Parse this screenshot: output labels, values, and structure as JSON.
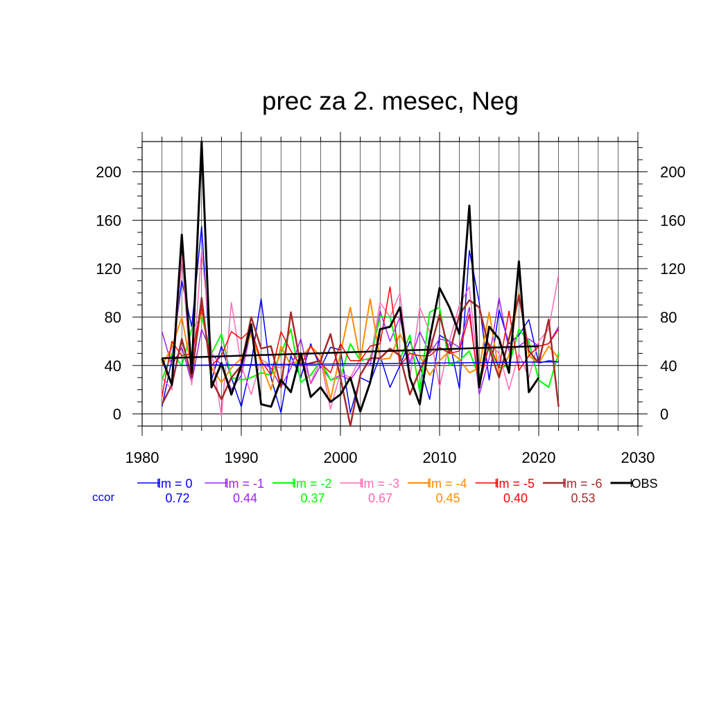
{
  "chart_data": {
    "type": "line",
    "title": "prec za 2. mesec, Neg",
    "xlabel": "",
    "ylabel": "",
    "xlim": [
      1980,
      2030
    ],
    "ylim": [
      -10,
      225
    ],
    "x_ticks": [
      1980,
      1990,
      2000,
      2010,
      2020,
      2030
    ],
    "x_tick_labels": [
      "1980",
      "1990",
      "2000",
      "2010",
      "2020",
      "2030"
    ],
    "y_ticks": [
      0,
      40,
      80,
      120,
      160,
      200
    ],
    "y_tick_labels": [
      "0",
      "40",
      "80",
      "120",
      "160",
      "200"
    ],
    "grid": true,
    "legend_position": "bottom",
    "ccor_label": "ccor",
    "years": [
      1982,
      1983,
      1984,
      1985,
      1986,
      1987,
      1988,
      1989,
      1990,
      1991,
      1992,
      1993,
      1994,
      1995,
      1996,
      1997,
      1998,
      1999,
      2000,
      2001,
      2002,
      2003,
      2004,
      2005,
      2006,
      2007,
      2008,
      2009,
      2010,
      2011,
      2012,
      2013,
      2014,
      2015,
      2016,
      2017,
      2018,
      2019,
      2020,
      2021,
      2022
    ],
    "series": [
      {
        "name": "lm = 0",
        "ccor": "0.72",
        "color": "#0000ff",
        "width": 1.5,
        "values": [
          6,
          45,
          110,
          72,
          155,
          28,
          56,
          30,
          6,
          42,
          95,
          30,
          1,
          48,
          30,
          58,
          38,
          55,
          53,
          1,
          30,
          26,
          48,
          22,
          40,
          60,
          40,
          12,
          65,
          60,
          21,
          135,
          92,
          28,
          86,
          58,
          65,
          78,
          42,
          44,
          43
        ]
      },
      {
        "name": "lm = -1",
        "ccor": "0.44",
        "color": "#a020f0",
        "width": 1.5,
        "values": [
          68,
          40,
          55,
          26,
          70,
          50,
          40,
          20,
          32,
          70,
          42,
          38,
          22,
          38,
          62,
          25,
          40,
          28,
          32,
          28,
          40,
          40,
          85,
          60,
          80,
          42,
          68,
          50,
          62,
          60,
          55,
          88,
          16,
          46,
          96,
          52,
          56,
          62,
          56,
          58,
          72
        ]
      },
      {
        "name": "lm = -2",
        "ccor": "0.37",
        "color": "#00ff00",
        "width": 2,
        "values": [
          28,
          50,
          40,
          70,
          80,
          50,
          66,
          30,
          28,
          30,
          34,
          32,
          50,
          70,
          26,
          32,
          44,
          28,
          30,
          58,
          44,
          46,
          80,
          80,
          45,
          65,
          18,
          84,
          88,
          40,
          44,
          52,
          30,
          55,
          38,
          40,
          70,
          60,
          28,
          22,
          50
        ]
      },
      {
        "name": "lm = -3",
        "ccor": "0.67",
        "color": "#ff69b4",
        "width": 1.5,
        "values": [
          30,
          20,
          130,
          24,
          135,
          52,
          -2,
          92,
          40,
          16,
          45,
          40,
          38,
          42,
          50,
          26,
          44,
          4,
          34,
          30,
          46,
          44,
          92,
          80,
          100,
          30,
          88,
          68,
          22,
          60,
          90,
          105,
          24,
          58,
          50,
          20,
          50,
          30,
          60,
          70,
          115
        ]
      },
      {
        "name": "lm = -4",
        "ccor": "0.45",
        "color": "#ff8c00",
        "width": 2,
        "values": [
          40,
          55,
          80,
          36,
          88,
          38,
          26,
          38,
          46,
          66,
          42,
          20,
          56,
          40,
          46,
          56,
          48,
          12,
          50,
          88,
          44,
          95,
          45,
          46,
          66,
          50,
          48,
          32,
          44,
          52,
          45,
          34,
          38,
          84,
          34,
          48,
          100,
          48,
          42,
          56,
          46
        ]
      },
      {
        "name": "lm = -5",
        "ccor": "0.40",
        "color": "#ff0000",
        "width": 1.5,
        "values": [
          14,
          60,
          48,
          50,
          88,
          40,
          48,
          68,
          62,
          70,
          44,
          32,
          68,
          52,
          40,
          56,
          42,
          34,
          58,
          44,
          44,
          56,
          58,
          105,
          40,
          50,
          48,
          48,
          55,
          50,
          52,
          82,
          22,
          58,
          38,
          85,
          36,
          48,
          56,
          58,
          70
        ]
      },
      {
        "name": "lm = -6",
        "ccor": "0.53",
        "color": "#a52a2a",
        "width": 2.5,
        "values": [
          8,
          24,
          62,
          30,
          96,
          28,
          12,
          30,
          40,
          80,
          54,
          56,
          22,
          84,
          40,
          42,
          44,
          66,
          30,
          -10,
          32,
          46,
          46,
          54,
          48,
          16,
          36,
          52,
          82,
          50,
          82,
          94,
          88,
          54,
          30,
          62,
          98,
          52,
          42,
          78,
          6
        ]
      },
      {
        "name": "OBS",
        "ccor": "",
        "color": "#000000",
        "width": 3,
        "values": [
          46,
          24,
          148,
          34,
          225,
          22,
          42,
          16,
          40,
          74,
          8,
          6,
          28,
          18,
          50,
          14,
          22,
          10,
          16,
          30,
          2,
          26,
          70,
          72,
          88,
          30,
          8,
          62,
          104,
          88,
          66,
          172,
          22,
          72,
          62,
          34,
          126,
          18,
          30,
          null,
          null
        ]
      }
    ],
    "trend_line": {
      "name": "OBS trend",
      "color": "#000000",
      "x": [
        1982,
        2020
      ],
      "y": [
        46,
        56
      ]
    }
  }
}
